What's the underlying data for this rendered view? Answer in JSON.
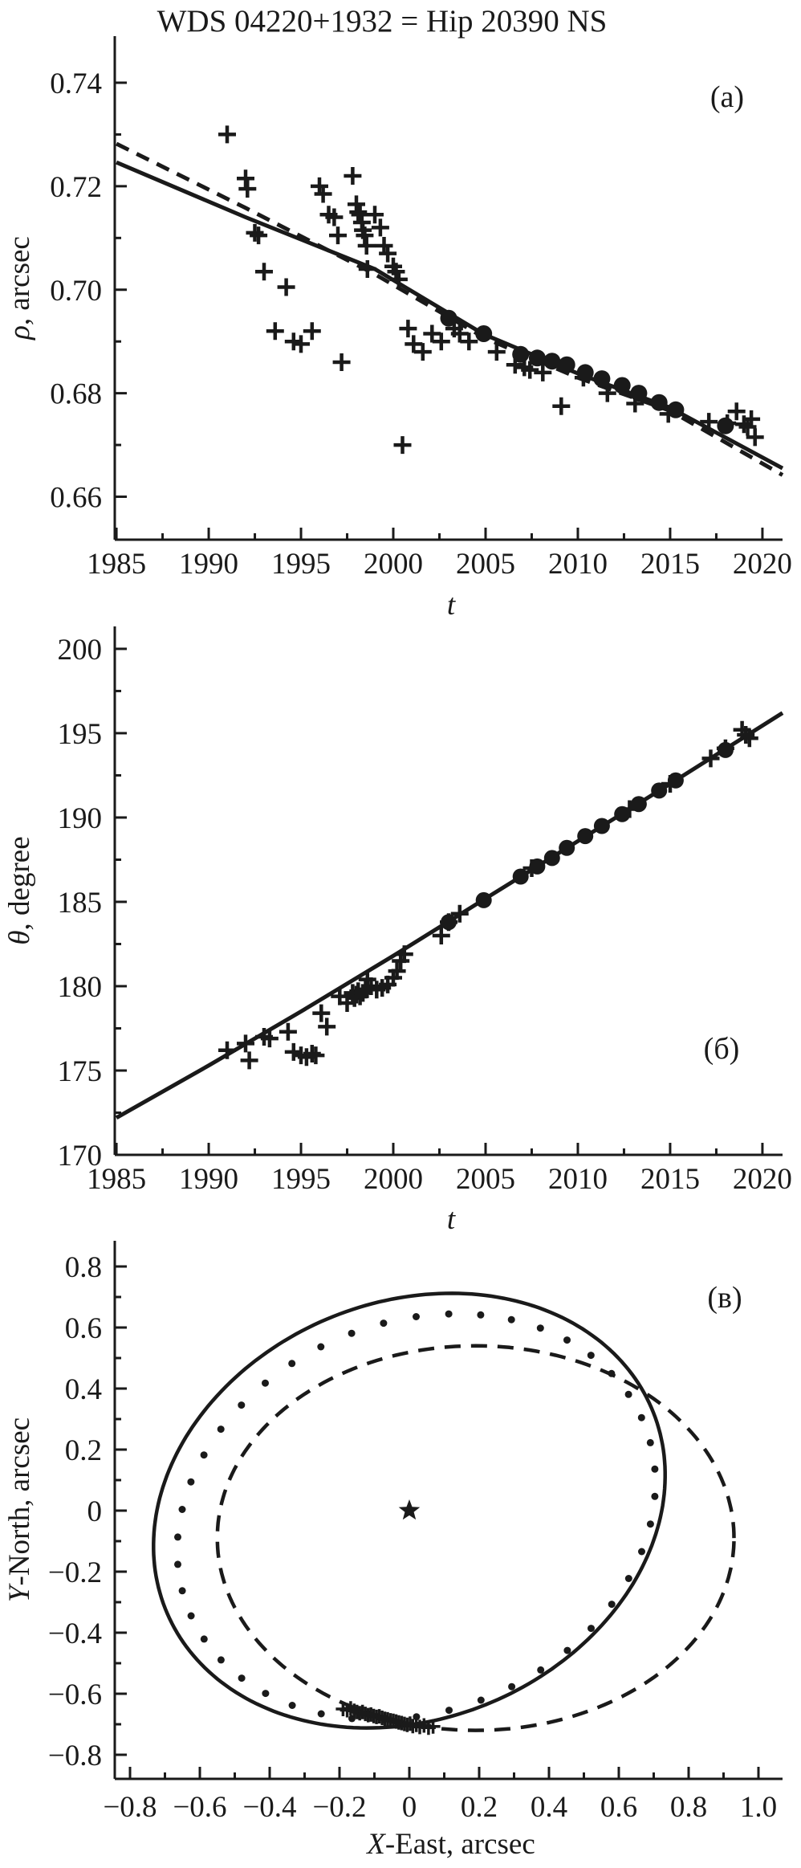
{
  "title": "WDS 04220+1932 = Hip 20390 NS",
  "chart_data": [
    {
      "id": "a",
      "type": "scatter",
      "panel_label": "(a)",
      "xlabel": {
        "italic": "t",
        "rest": ""
      },
      "ylabel": {
        "italic": "ρ",
        "rest": ", arcsec"
      },
      "xlim": [
        1984.91,
        2021.09
      ],
      "ylim": [
        0.6517,
        0.749
      ],
      "x_ticks": {
        "values": [
          1985,
          1990,
          1995,
          2000,
          2005,
          2010,
          2015,
          2020
        ],
        "labels": [
          "1985",
          "1990",
          "1995",
          "2000",
          "2005",
          "2010",
          "2015",
          "2020"
        ]
      },
      "x_minor": [
        1987.5,
        1992.5,
        1997.5,
        2002.5,
        2007.5,
        2012.5,
        2017.5
      ],
      "y_ticks": {
        "values": [
          0.74,
          0.72,
          0.7,
          0.68,
          0.66
        ],
        "labels": [
          "0.74",
          "0.72",
          "0.70",
          "0.68",
          "0.66"
        ]
      },
      "y_minor": [
        0.73,
        0.71,
        0.69,
        0.67
      ],
      "series": [
        {
          "name": "orbit-fit-solid",
          "type": "line",
          "style": "solid",
          "points": [
            [
              1985,
              0.7246
            ],
            [
              1992,
              0.714
            ],
            [
              1999,
              0.704
            ],
            [
              2004.9,
              0.6914
            ],
            [
              2010,
              0.6838
            ],
            [
              2015,
              0.6772
            ],
            [
              2021.09,
              0.6655
            ]
          ]
        },
        {
          "name": "orbit-fit-dashed",
          "type": "line",
          "style": "dashed",
          "points": [
            [
              1985,
              0.7282
            ],
            [
              1992,
              0.7158
            ],
            [
              1999,
              0.703
            ],
            [
              2005,
              0.6906
            ],
            [
              2010,
              0.683
            ],
            [
              2015,
              0.6766
            ],
            [
              2021.09,
              0.6642
            ]
          ]
        },
        {
          "name": "measurements-crosses",
          "marker": "cross",
          "size": 11,
          "points": [
            [
              1991.0,
              0.73
            ],
            [
              1992.0,
              0.7215
            ],
            [
              1992.1,
              0.7195
            ],
            [
              1992.5,
              0.711
            ],
            [
              1992.7,
              0.7105
            ],
            [
              1993.0,
              0.7035
            ],
            [
              1993.6,
              0.692
            ],
            [
              1994.2,
              0.7005
            ],
            [
              1994.6,
              0.69
            ],
            [
              1995.0,
              0.6895
            ],
            [
              1995.6,
              0.692
            ],
            [
              1996.0,
              0.72
            ],
            [
              1996.2,
              0.7185
            ],
            [
              1996.5,
              0.7145
            ],
            [
              1996.8,
              0.714
            ],
            [
              1997.0,
              0.7105
            ],
            [
              1997.2,
              0.686
            ],
            [
              1997.8,
              0.722
            ],
            [
              1998.0,
              0.7165
            ],
            [
              1998.1,
              0.715
            ],
            [
              1998.2,
              0.7145
            ],
            [
              1998.3,
              0.713
            ],
            [
              1998.35,
              0.7115
            ],
            [
              1998.45,
              0.7105
            ],
            [
              1998.55,
              0.7085
            ],
            [
              1998.6,
              0.704
            ],
            [
              1999.0,
              0.7145
            ],
            [
              1999.3,
              0.712
            ],
            [
              1999.5,
              0.7085
            ],
            [
              1999.7,
              0.707
            ],
            [
              2000.0,
              0.7045
            ],
            [
              2000.15,
              0.7035
            ],
            [
              2000.3,
              0.702
            ],
            [
              2000.5,
              0.67
            ],
            [
              2000.8,
              0.6925
            ],
            [
              2001.1,
              0.6895
            ],
            [
              2001.6,
              0.688
            ],
            [
              2002.1,
              0.6915
            ],
            [
              2002.6,
              0.69
            ],
            [
              2003.3,
              0.6925
            ],
            [
              2003.6,
              0.6915
            ],
            [
              2004.1,
              0.69
            ],
            [
              2005.6,
              0.688
            ],
            [
              2006.6,
              0.6855
            ],
            [
              2007.1,
              0.685
            ],
            [
              2007.4,
              0.6845
            ],
            [
              2008.1,
              0.684
            ],
            [
              2009.1,
              0.6775
            ],
            [
              2010.3,
              0.683
            ],
            [
              2011.6,
              0.68
            ],
            [
              2013.1,
              0.678
            ],
            [
              2014.9,
              0.676
            ],
            [
              2017.1,
              0.6745
            ],
            [
              2018.1,
              0.6742
            ],
            [
              2018.6,
              0.6765
            ],
            [
              2019.0,
              0.674
            ],
            [
              2019.2,
              0.6735
            ],
            [
              2019.4,
              0.675
            ],
            [
              2019.6,
              0.6715
            ]
          ]
        },
        {
          "name": "mean-positions-circles",
          "marker": "circle",
          "size": 10.5,
          "points": [
            [
              2003.0,
              0.6945
            ],
            [
              2004.9,
              0.6915
            ],
            [
              2006.9,
              0.6875
            ],
            [
              2007.8,
              0.6868
            ],
            [
              2008.6,
              0.6862
            ],
            [
              2009.4,
              0.6855
            ],
            [
              2010.4,
              0.684
            ],
            [
              2011.3,
              0.6828
            ],
            [
              2012.4,
              0.6815
            ],
            [
              2013.3,
              0.68
            ],
            [
              2014.4,
              0.6782
            ],
            [
              2015.3,
              0.6768
            ],
            [
              2018.0,
              0.6737
            ]
          ]
        }
      ]
    },
    {
      "id": "b",
      "type": "scatter",
      "panel_label": "(б)",
      "xlabel": {
        "italic": "t",
        "rest": ""
      },
      "ylabel": {
        "italic": "θ",
        "rest": ", degree"
      },
      "xlim": [
        1984.91,
        2021.09
      ],
      "ylim": [
        170.0,
        201.33
      ],
      "x_ticks": {
        "values": [
          1985,
          1990,
          1995,
          2000,
          2005,
          2010,
          2015,
          2020
        ],
        "labels": [
          "1985",
          "1990",
          "1995",
          "2000",
          "2005",
          "2010",
          "2015",
          "2020"
        ]
      },
      "x_minor": [
        1987.5,
        1992.5,
        1997.5,
        2002.5,
        2007.5,
        2012.5,
        2017.5
      ],
      "y_ticks": {
        "values": [
          200,
          195,
          190,
          185,
          180,
          175,
          170
        ],
        "labels": [
          "200",
          "195",
          "190",
          "185",
          "180",
          "175",
          "170"
        ]
      },
      "y_minor": [
        197.5,
        192.5,
        187.5,
        182.5,
        177.5,
        172.5
      ],
      "series": [
        {
          "name": "orbit-fit-solid",
          "type": "line",
          "style": "solid",
          "points": [
            [
              1985,
              172.2
            ],
            [
              1990,
              175.3
            ],
            [
              1995,
              178.5
            ],
            [
              2000,
              181.8
            ],
            [
              2005,
              185.2
            ],
            [
              2010,
              188.6
            ],
            [
              2015,
              192.0
            ],
            [
              2021.09,
              196.2
            ]
          ]
        },
        {
          "name": "measurements-crosses",
          "marker": "cross",
          "size": 11,
          "points": [
            [
              1991.0,
              176.2
            ],
            [
              1992.0,
              176.6
            ],
            [
              1992.2,
              175.6
            ],
            [
              1993.0,
              177.0
            ],
            [
              1993.3,
              176.9
            ],
            [
              1994.3,
              177.3
            ],
            [
              1994.6,
              176.1
            ],
            [
              1995.0,
              175.9
            ],
            [
              1995.3,
              175.8
            ],
            [
              1995.6,
              176.0
            ],
            [
              1995.8,
              175.9
            ],
            [
              1996.1,
              178.4
            ],
            [
              1996.4,
              177.6
            ],
            [
              1997.1,
              179.4
            ],
            [
              1997.5,
              179.0
            ],
            [
              1997.8,
              179.6
            ],
            [
              1997.9,
              179.3
            ],
            [
              1998.0,
              179.5
            ],
            [
              1998.1,
              179.7
            ],
            [
              1998.2,
              179.4
            ],
            [
              1998.35,
              179.6
            ],
            [
              1998.5,
              179.8
            ],
            [
              1998.6,
              180.4
            ],
            [
              1998.8,
              180.0
            ],
            [
              1999.1,
              179.8
            ],
            [
              1999.4,
              179.9
            ],
            [
              1999.7,
              180.1
            ],
            [
              2000.0,
              180.5
            ],
            [
              2000.2,
              180.9
            ],
            [
              2000.4,
              181.5
            ],
            [
              2000.6,
              181.9
            ],
            [
              2002.6,
              183.0
            ],
            [
              2003.0,
              183.8
            ],
            [
              2003.6,
              184.3
            ],
            [
              2007.5,
              187.0
            ],
            [
              2012.8,
              190.5
            ],
            [
              2015.0,
              192.0
            ],
            [
              2017.2,
              193.5
            ],
            [
              2018.0,
              194.1
            ],
            [
              2018.9,
              195.2
            ],
            [
              2019.1,
              194.9
            ],
            [
              2019.3,
              194.7
            ]
          ]
        },
        {
          "name": "mean-positions-circles",
          "marker": "circle",
          "size": 10,
          "points": [
            [
              2003.0,
              183.8
            ],
            [
              2004.9,
              185.1
            ],
            [
              2006.9,
              186.5
            ],
            [
              2007.8,
              187.1
            ],
            [
              2008.6,
              187.6
            ],
            [
              2009.4,
              188.2
            ],
            [
              2010.4,
              188.9
            ],
            [
              2011.3,
              189.5
            ],
            [
              2012.4,
              190.2
            ],
            [
              2013.3,
              190.8
            ],
            [
              2014.4,
              191.6
            ],
            [
              2015.3,
              192.2
            ],
            [
              2018.0,
              194.0
            ]
          ]
        }
      ]
    },
    {
      "id": "v",
      "type": "scatter",
      "panel_label": "(в)",
      "xlabel": {
        "italic": "X",
        "rest": "-East, arcsec"
      },
      "ylabel": {
        "italic": "Y",
        "rest": "-North, arcsec"
      },
      "xlim": [
        -0.8437,
        1.069
      ],
      "ylim": [
        -0.8789,
        0.8842
      ],
      "x_ticks": {
        "values": [
          -0.8,
          -0.6,
          -0.4,
          -0.2,
          0,
          0.2,
          0.4,
          0.6,
          0.8,
          1.0
        ],
        "labels": [
          "−0.8",
          "−0.6",
          "−0.4",
          "−0.2",
          "0",
          "0.2",
          "0.4",
          "0.6",
          "0.8",
          "1.0"
        ]
      },
      "x_minor": [
        -0.7,
        -0.5,
        -0.3,
        -0.1,
        0.1,
        0.3,
        0.5,
        0.7,
        0.9
      ],
      "y_ticks": {
        "values": [
          0.8,
          0.6,
          0.4,
          0.2,
          0,
          -0.2,
          -0.4,
          -0.6,
          -0.8
        ],
        "labels": [
          "0.8",
          "0.6",
          "0.4",
          "0.2",
          "0",
          "−0.2",
          "−0.4",
          "−0.6",
          "−0.8"
        ]
      },
      "y_minor": [
        0.7,
        0.5,
        0.3,
        0.1,
        -0.1,
        -0.3,
        -0.5,
        -0.7
      ],
      "series": [
        {
          "name": "orbit-ellipse-solid",
          "type": "ellipse",
          "style": "solid",
          "cx": 0.0,
          "cy": 0.0,
          "a": 0.78,
          "b": 0.66,
          "rot_deg": 40
        },
        {
          "name": "orbit-ellipse-dotted",
          "type": "ellipse",
          "style": "dotted",
          "cx": 0.02,
          "cy": -0.02,
          "a": 0.73,
          "b": 0.615,
          "rot_deg": 40,
          "n_dots": 46
        },
        {
          "name": "orbit-ellipse-dashed",
          "type": "ellipse",
          "style": "dashed",
          "cx": 0.19,
          "cy": -0.09,
          "a": 0.74,
          "b": 0.63,
          "rot_deg": 0
        },
        {
          "name": "primary-star",
          "marker": "star",
          "size": 14,
          "points": [
            [
              0,
              0
            ]
          ]
        },
        {
          "name": "measurements-crosses",
          "marker": "cross",
          "size": 9,
          "points": [
            [
              -0.19,
              -0.65
            ],
            [
              -0.178,
              -0.654
            ],
            [
              -0.168,
              -0.648
            ],
            [
              -0.158,
              -0.656
            ],
            [
              -0.15,
              -0.66
            ],
            [
              -0.142,
              -0.664
            ],
            [
              -0.134,
              -0.66
            ],
            [
              -0.126,
              -0.666
            ],
            [
              -0.118,
              -0.67
            ],
            [
              -0.11,
              -0.668
            ],
            [
              -0.102,
              -0.673
            ],
            [
              -0.094,
              -0.676
            ],
            [
              -0.086,
              -0.674
            ],
            [
              -0.078,
              -0.679
            ],
            [
              -0.07,
              -0.682
            ],
            [
              -0.062,
              -0.684
            ],
            [
              -0.054,
              -0.687
            ],
            [
              -0.046,
              -0.689
            ],
            [
              -0.038,
              -0.691
            ],
            [
              -0.03,
              -0.694
            ],
            [
              -0.022,
              -0.696
            ],
            [
              -0.014,
              -0.699
            ],
            [
              -0.006,
              -0.702
            ],
            [
              0.002,
              -0.698
            ],
            [
              0.01,
              -0.706
            ],
            [
              0.02,
              -0.702
            ],
            [
              0.03,
              -0.709
            ],
            [
              0.042,
              -0.704
            ],
            [
              0.055,
              -0.711
            ],
            [
              0.068,
              -0.707
            ]
          ]
        }
      ]
    }
  ]
}
